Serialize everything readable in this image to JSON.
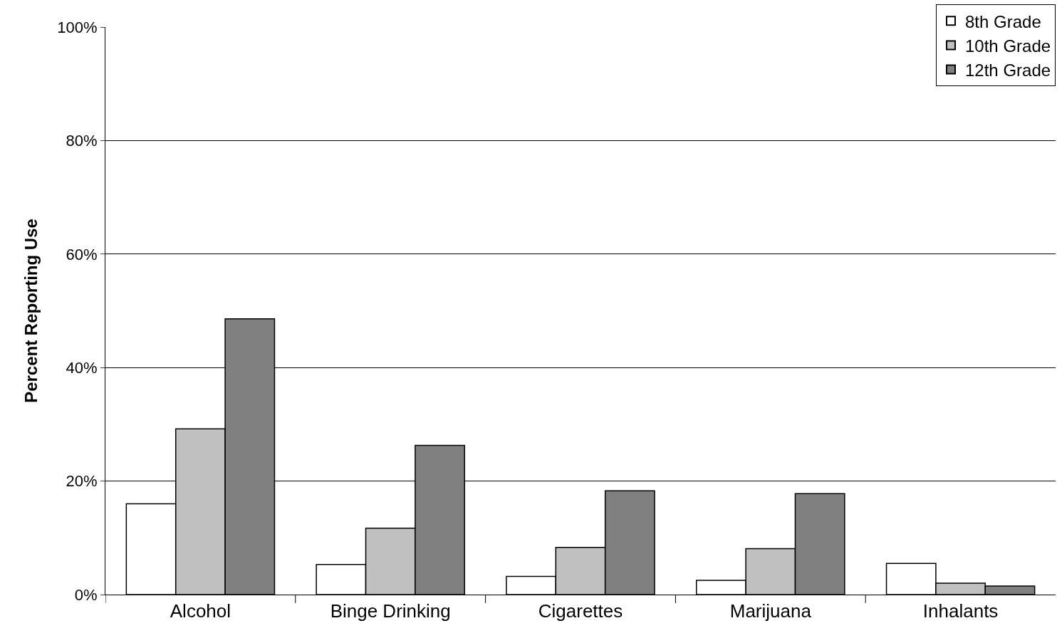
{
  "chart_data": {
    "type": "bar",
    "ylabel": "Percent Reporting Use",
    "categories": [
      "Alcohol",
      "Binge Drinking",
      "Cigarettes",
      "Marijuana",
      "Inhalants"
    ],
    "series": [
      {
        "name": "8th Grade",
        "color": "#ffffff",
        "values": [
          16.0,
          5.3,
          3.2,
          2.5,
          5.5
        ]
      },
      {
        "name": "10th Grade",
        "color": "#c0c0c0",
        "values": [
          29.2,
          11.7,
          8.3,
          8.1,
          2.0
        ]
      },
      {
        "name": "12th Grade",
        "color": "#808080",
        "values": [
          48.6,
          26.3,
          18.3,
          17.8,
          1.5
        ]
      }
    ],
    "ylim": [
      0,
      100
    ],
    "yticks": [
      {
        "value": 0,
        "label": "0%"
      },
      {
        "value": 20,
        "label": "20%"
      },
      {
        "value": 40,
        "label": "40%"
      },
      {
        "value": 60,
        "label": "60%"
      },
      {
        "value": 80,
        "label": "80%"
      },
      {
        "value": 100,
        "label": "100%"
      }
    ],
    "grid": "y",
    "legend": "top right"
  }
}
